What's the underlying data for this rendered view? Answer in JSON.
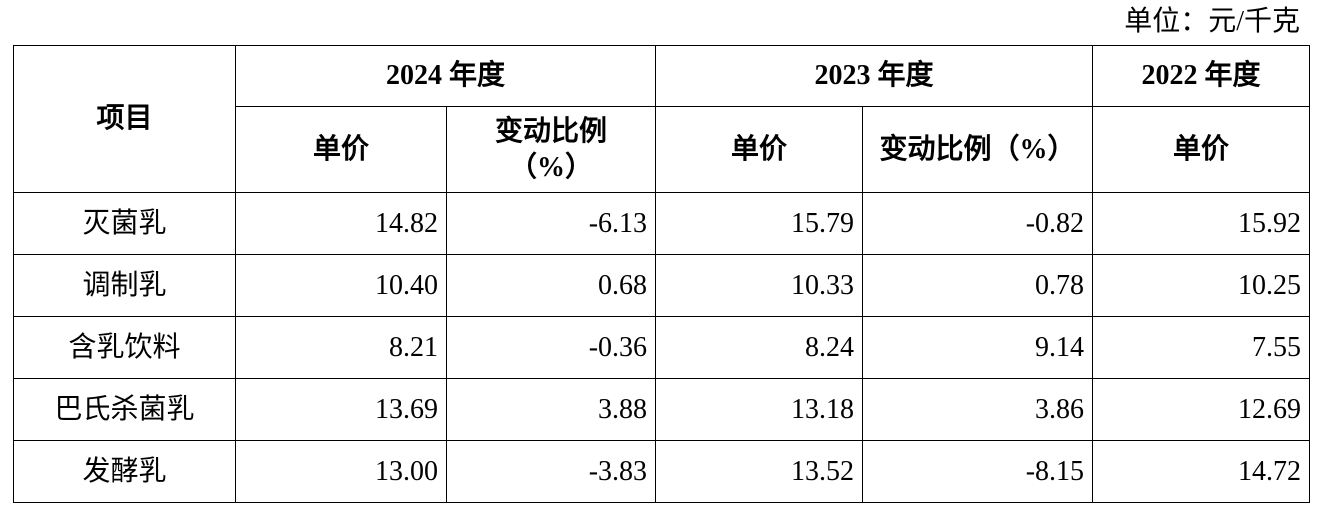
{
  "unit": "单位：元/千克",
  "table": {
    "header": {
      "item": "项目",
      "years": [
        "2024 年度",
        "2023 年度",
        "2022 年度"
      ],
      "sub": [
        "单价",
        "变动比例（%）",
        "单价",
        "变动比例（%）",
        "单价"
      ]
    },
    "rows": [
      [
        "灭菌乳",
        "14.82",
        "-6.13",
        "15.79",
        "-0.82",
        "15.92"
      ],
      [
        "调制乳",
        "10.40",
        "0.68",
        "10.33",
        "0.78",
        "10.25"
      ],
      [
        "含乳饮料",
        "8.21",
        "-0.36",
        "8.24",
        "9.14",
        "7.55"
      ],
      [
        "巴氏杀菌乳",
        "13.69",
        "3.88",
        "13.18",
        "3.86",
        "12.69"
      ],
      [
        "发酵乳",
        "13.00",
        "-3.83",
        "13.52",
        "-8.15",
        "14.72"
      ]
    ]
  }
}
